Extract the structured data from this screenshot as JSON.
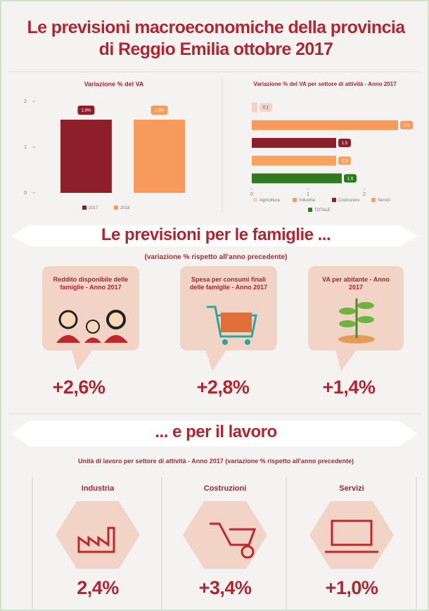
{
  "header": {
    "title": "Le previsioni macroeconomiche della provincia di Reggio Emilia ottobre 2017"
  },
  "chart_data": [
    {
      "type": "bar",
      "title": "Variazione % del VA",
      "categories": [
        null
      ],
      "series": [
        {
          "name": "2017",
          "color": "#8e1f2a",
          "values": [
            1.6
          ],
          "value_labels": [
            "1.6%"
          ]
        },
        {
          "name": "2018",
          "color": "#f79b5c",
          "values": [
            1.6
          ],
          "value_labels": [
            "1.6%"
          ]
        }
      ],
      "ylim": [
        0,
        2
      ],
      "yticks": [
        0,
        1,
        2
      ],
      "legend": "bottom"
    },
    {
      "type": "bar",
      "orientation": "horizontal",
      "title": "Variazione % del VA per settore di attività - Anno 2017",
      "categories": [
        "Agricoltura",
        "Industria",
        "Costruzioni",
        "Servizi",
        "TOTALE"
      ],
      "values": [
        0.1,
        2.6,
        1.5,
        1.5,
        1.6
      ],
      "colors": [
        "#f1d4c6",
        "#f79b5c",
        "#8e1f2a",
        "#f7a35e",
        "#2f7a1f"
      ],
      "xlim": [
        0,
        2.8
      ],
      "xticks": [
        0,
        1,
        2
      ],
      "legend": "bottom"
    }
  ],
  "famiglie": {
    "title": "Le previsioni per le famiglie ...",
    "subtitle": "(variazione % rispetto all'anno precedente)",
    "cards": [
      {
        "label": "Reddito disponibile delle famiglie - Anno 2017",
        "value": "+2,6%"
      },
      {
        "label": "Spesa per consumi finali delle famiglie - Anno 2017",
        "value": "+2,8%"
      },
      {
        "label": "VA per abitante - Anno 2017",
        "value": "+1,4%"
      }
    ]
  },
  "lavoro": {
    "title": "... e per il lavoro",
    "subtitle": "Unità di lavoro per settore di attività - Anno 2017 (variazione % rispetto all'anno precedente)",
    "sectors": [
      {
        "label": "Industria",
        "value": "2,4%"
      },
      {
        "label": "Costruzioni",
        "value": "+3,4%"
      },
      {
        "label": "Servizi",
        "value": "+1,0%"
      }
    ]
  }
}
